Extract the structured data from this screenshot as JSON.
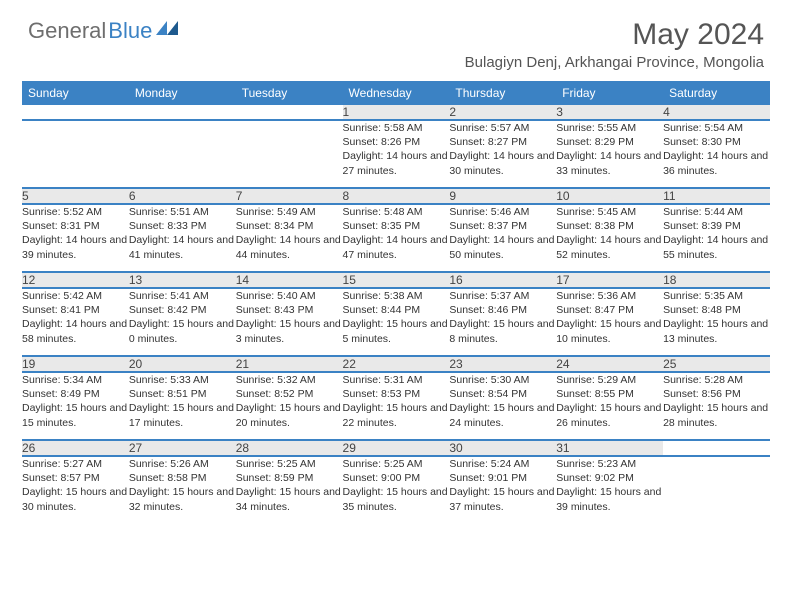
{
  "logo": {
    "text_gray": "General",
    "text_blue": "Blue"
  },
  "title": "May 2024",
  "location": "Bulagiyn Denj, Arkhangai Province, Mongolia",
  "colors": {
    "header_bg": "#3b82c4",
    "header_text": "#ffffff",
    "daynum_bg": "#e9e9e9",
    "rule": "#3b82c4",
    "body_text": "#333333",
    "logo_gray": "#6e6e6e",
    "logo_blue": "#3b82c4"
  },
  "weekdays": [
    "Sunday",
    "Monday",
    "Tuesday",
    "Wednesday",
    "Thursday",
    "Friday",
    "Saturday"
  ],
  "weeks": [
    [
      null,
      null,
      null,
      {
        "n": "1",
        "sr": "5:58 AM",
        "ss": "8:26 PM",
        "dl": "14 hours and 27 minutes."
      },
      {
        "n": "2",
        "sr": "5:57 AM",
        "ss": "8:27 PM",
        "dl": "14 hours and 30 minutes."
      },
      {
        "n": "3",
        "sr": "5:55 AM",
        "ss": "8:29 PM",
        "dl": "14 hours and 33 minutes."
      },
      {
        "n": "4",
        "sr": "5:54 AM",
        "ss": "8:30 PM",
        "dl": "14 hours and 36 minutes."
      }
    ],
    [
      {
        "n": "5",
        "sr": "5:52 AM",
        "ss": "8:31 PM",
        "dl": "14 hours and 39 minutes."
      },
      {
        "n": "6",
        "sr": "5:51 AM",
        "ss": "8:33 PM",
        "dl": "14 hours and 41 minutes."
      },
      {
        "n": "7",
        "sr": "5:49 AM",
        "ss": "8:34 PM",
        "dl": "14 hours and 44 minutes."
      },
      {
        "n": "8",
        "sr": "5:48 AM",
        "ss": "8:35 PM",
        "dl": "14 hours and 47 minutes."
      },
      {
        "n": "9",
        "sr": "5:46 AM",
        "ss": "8:37 PM",
        "dl": "14 hours and 50 minutes."
      },
      {
        "n": "10",
        "sr": "5:45 AM",
        "ss": "8:38 PM",
        "dl": "14 hours and 52 minutes."
      },
      {
        "n": "11",
        "sr": "5:44 AM",
        "ss": "8:39 PM",
        "dl": "14 hours and 55 minutes."
      }
    ],
    [
      {
        "n": "12",
        "sr": "5:42 AM",
        "ss": "8:41 PM",
        "dl": "14 hours and 58 minutes."
      },
      {
        "n": "13",
        "sr": "5:41 AM",
        "ss": "8:42 PM",
        "dl": "15 hours and 0 minutes."
      },
      {
        "n": "14",
        "sr": "5:40 AM",
        "ss": "8:43 PM",
        "dl": "15 hours and 3 minutes."
      },
      {
        "n": "15",
        "sr": "5:38 AM",
        "ss": "8:44 PM",
        "dl": "15 hours and 5 minutes."
      },
      {
        "n": "16",
        "sr": "5:37 AM",
        "ss": "8:46 PM",
        "dl": "15 hours and 8 minutes."
      },
      {
        "n": "17",
        "sr": "5:36 AM",
        "ss": "8:47 PM",
        "dl": "15 hours and 10 minutes."
      },
      {
        "n": "18",
        "sr": "5:35 AM",
        "ss": "8:48 PM",
        "dl": "15 hours and 13 minutes."
      }
    ],
    [
      {
        "n": "19",
        "sr": "5:34 AM",
        "ss": "8:49 PM",
        "dl": "15 hours and 15 minutes."
      },
      {
        "n": "20",
        "sr": "5:33 AM",
        "ss": "8:51 PM",
        "dl": "15 hours and 17 minutes."
      },
      {
        "n": "21",
        "sr": "5:32 AM",
        "ss": "8:52 PM",
        "dl": "15 hours and 20 minutes."
      },
      {
        "n": "22",
        "sr": "5:31 AM",
        "ss": "8:53 PM",
        "dl": "15 hours and 22 minutes."
      },
      {
        "n": "23",
        "sr": "5:30 AM",
        "ss": "8:54 PM",
        "dl": "15 hours and 24 minutes."
      },
      {
        "n": "24",
        "sr": "5:29 AM",
        "ss": "8:55 PM",
        "dl": "15 hours and 26 minutes."
      },
      {
        "n": "25",
        "sr": "5:28 AM",
        "ss": "8:56 PM",
        "dl": "15 hours and 28 minutes."
      }
    ],
    [
      {
        "n": "26",
        "sr": "5:27 AM",
        "ss": "8:57 PM",
        "dl": "15 hours and 30 minutes."
      },
      {
        "n": "27",
        "sr": "5:26 AM",
        "ss": "8:58 PM",
        "dl": "15 hours and 32 minutes."
      },
      {
        "n": "28",
        "sr": "5:25 AM",
        "ss": "8:59 PM",
        "dl": "15 hours and 34 minutes."
      },
      {
        "n": "29",
        "sr": "5:25 AM",
        "ss": "9:00 PM",
        "dl": "15 hours and 35 minutes."
      },
      {
        "n": "30",
        "sr": "5:24 AM",
        "ss": "9:01 PM",
        "dl": "15 hours and 37 minutes."
      },
      {
        "n": "31",
        "sr": "5:23 AM",
        "ss": "9:02 PM",
        "dl": "15 hours and 39 minutes."
      },
      null
    ]
  ],
  "labels": {
    "sunrise": "Sunrise:",
    "sunset": "Sunset:",
    "daylight": "Daylight:"
  }
}
